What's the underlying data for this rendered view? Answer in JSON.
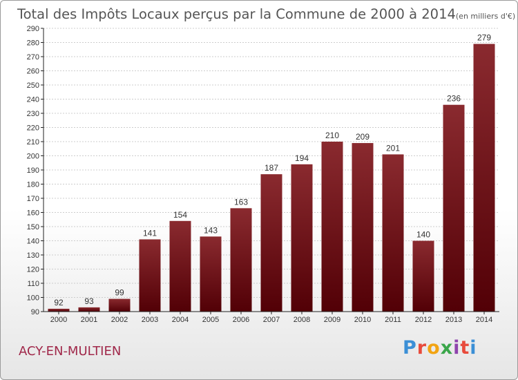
{
  "title": "Total des Impôts Locaux perçus par la Commune de 2000 à 2014",
  "unit_note": "(en milliers d'€)",
  "commune": "ACY-EN-MULTIEN",
  "logo": {
    "text": "Proxiti",
    "colors": [
      "#3b8fd6",
      "#e84b3c",
      "#f2a413",
      "#3aa64a",
      "#8e44ad",
      "#e84b3c",
      "#3b8fd6"
    ]
  },
  "colors": {
    "bar_top": "#8a2a2f",
    "bar_bottom": "#520006",
    "grid": "#cccccc",
    "axis": "#222222",
    "commune": "#a0284a"
  },
  "chart_data": {
    "type": "bar",
    "title": "Total des Impôts Locaux perçus par la Commune de 2000 à 2014",
    "xlabel": "",
    "ylabel": "",
    "categories": [
      "2000",
      "2001",
      "2002",
      "2003",
      "2004",
      "2005",
      "2006",
      "2007",
      "2008",
      "2009",
      "2010",
      "2011",
      "2012",
      "2013",
      "2014"
    ],
    "values": [
      92,
      93,
      99,
      141,
      154,
      143,
      163,
      187,
      194,
      210,
      209,
      201,
      140,
      236,
      279
    ],
    "ylim": [
      90,
      290
    ],
    "ytick_step": 10,
    "grid": true,
    "legend": "none"
  }
}
